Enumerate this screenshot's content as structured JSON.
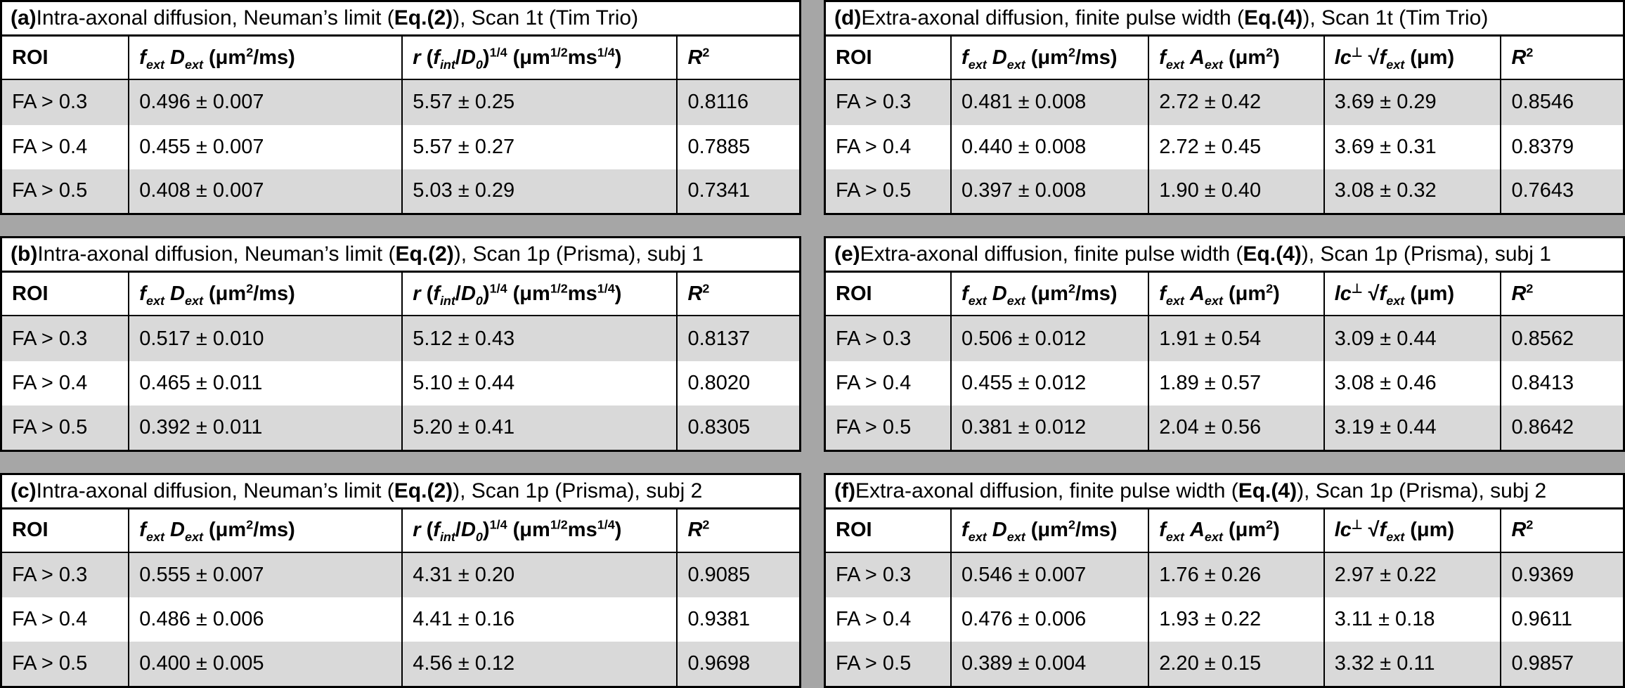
{
  "colors": {
    "row_shade": "#d9d9d9",
    "separator_band": "#a6a6a6",
    "border": "#000000",
    "background": "#ffffff"
  },
  "tables": {
    "a": {
      "title_html": "<b>(a)</b> Intra-axonal diffusion, Neuman’s limit (<b>Eq.(2)</b>), Scan 1t (Tim Trio)",
      "headers": [
        "ROI",
        "<i>f</i><sub><i>ext</i></sub> <i>D</i><sub><i>ext</i></sub> (μm<sup>2</sup>/ms)",
        "<i>r</i> (<i>f</i><sub><i>int</i></sub>/<i>D</i><sub><i>0</i></sub>)<sup>1/4</sup> (μm<sup>1/2</sup>ms<sup>1/4</sup>)",
        "<i>R</i><sup>2</sup>"
      ],
      "rows": [
        [
          "FA > 0.3",
          "0.496 ± 0.007",
          "5.57 ± 0.25",
          "0.8116"
        ],
        [
          "FA > 0.4",
          "0.455 ± 0.007",
          "5.57 ± 0.27",
          "0.7885"
        ],
        [
          "FA > 0.5",
          "0.408 ± 0.007",
          "5.03 ± 0.29",
          "0.7341"
        ]
      ]
    },
    "b": {
      "title_html": "<b>(b)</b> Intra-axonal diffusion, Neuman’s limit (<b>Eq.(2)</b>), Scan 1p (Prisma), subj 1",
      "headers": [
        "ROI",
        "<i>f</i><sub><i>ext</i></sub> <i>D</i><sub><i>ext</i></sub> (μm<sup>2</sup>/ms)",
        "<i>r</i> (<i>f</i><sub><i>int</i></sub>/<i>D</i><sub><i>0</i></sub>)<sup>1/4</sup> (μm<sup>1/2</sup>ms<sup>1/4</sup>)",
        "<i>R</i><sup>2</sup>"
      ],
      "rows": [
        [
          "FA > 0.3",
          "0.517 ± 0.010",
          "5.12 ± 0.43",
          "0.8137"
        ],
        [
          "FA > 0.4",
          "0.465 ± 0.011",
          "5.10 ± 0.44",
          "0.8020"
        ],
        [
          "FA > 0.5",
          "0.392 ± 0.011",
          "5.20 ± 0.41",
          "0.8305"
        ]
      ]
    },
    "c": {
      "title_html": "<b>(c)</b> Intra-axonal diffusion, Neuman’s limit (<b>Eq.(2)</b>), Scan 1p (Prisma), subj 2",
      "headers": [
        "ROI",
        "<i>f</i><sub><i>ext</i></sub> <i>D</i><sub><i>ext</i></sub> (μm<sup>2</sup>/ms)",
        "<i>r</i> (<i>f</i><sub><i>int</i></sub>/<i>D</i><sub><i>0</i></sub>)<sup>1/4</sup> (μm<sup>1/2</sup>ms<sup>1/4</sup>)",
        "<i>R</i><sup>2</sup>"
      ],
      "rows": [
        [
          "FA > 0.3",
          "0.555 ± 0.007",
          "4.31 ± 0.20",
          "0.9085"
        ],
        [
          "FA > 0.4",
          "0.486 ± 0.006",
          "4.41 ± 0.16",
          "0.9381"
        ],
        [
          "FA > 0.5",
          "0.400 ± 0.005",
          "4.56 ± 0.12",
          "0.9698"
        ]
      ]
    },
    "d": {
      "title_html": "<b>(d)</b> Extra-axonal diffusion, finite pulse width (<b>Eq.(4)</b>), Scan 1t (Tim Trio)",
      "headers": [
        "ROI",
        "<i>f</i><sub><i>ext</i></sub> <i>D</i><sub><i>ext</i></sub> (μm<sup>2</sup>/ms)",
        "<i>f</i><sub><i>ext</i></sub> <i>A</i><sub><i>ext</i></sub> (μm<sup>2</sup>)",
        "<i>lc</i><sup>⊥</sup> √<i>f</i><sub><i>ext</i></sub> (μm)",
        "<i>R</i><sup>2</sup>"
      ],
      "rows": [
        [
          "FA > 0.3",
          "0.481 ± 0.008",
          "2.72 ± 0.42",
          "3.69 ± 0.29",
          "0.8546"
        ],
        [
          "FA > 0.4",
          "0.440 ± 0.008",
          "2.72 ± 0.45",
          "3.69 ± 0.31",
          "0.8379"
        ],
        [
          "FA > 0.5",
          "0.397 ± 0.008",
          "1.90 ± 0.40",
          "3.08 ± 0.32",
          "0.7643"
        ]
      ]
    },
    "e": {
      "title_html": "<b>(e)</b> Extra-axonal diffusion, finite pulse width (<b>Eq.(4)</b>), Scan 1p (Prisma), subj 1",
      "headers": [
        "ROI",
        "<i>f</i><sub><i>ext</i></sub> <i>D</i><sub><i>ext</i></sub> (μm<sup>2</sup>/ms)",
        "<i>f</i><sub><i>ext</i></sub> <i>A</i><sub><i>ext</i></sub> (μm<sup>2</sup>)",
        "<i>lc</i><sup>⊥</sup> √<i>f</i><sub><i>ext</i></sub> (μm)",
        "<i>R</i><sup>2</sup>"
      ],
      "rows": [
        [
          "FA > 0.3",
          "0.506 ± 0.012",
          "1.91 ± 0.54",
          "3.09 ± 0.44",
          "0.8562"
        ],
        [
          "FA > 0.4",
          "0.455 ± 0.012",
          "1.89 ± 0.57",
          "3.08 ± 0.46",
          "0.8413"
        ],
        [
          "FA > 0.5",
          "0.381 ± 0.012",
          "2.04 ± 0.56",
          "3.19 ± 0.44",
          "0.8642"
        ]
      ]
    },
    "f": {
      "title_html": "<b>(f)</b> Extra-axonal diffusion, finite pulse width (<b>Eq.(4)</b>), Scan 1p (Prisma), subj 2",
      "headers": [
        "ROI",
        "<i>f</i><sub><i>ext</i></sub> <i>D</i><sub><i>ext</i></sub> (μm<sup>2</sup>/ms)",
        "<i>f</i><sub><i>ext</i></sub> <i>A</i><sub><i>ext</i></sub> (μm<sup>2</sup>)",
        "<i>lc</i><sup>⊥</sup> √<i>f</i><sub><i>ext</i></sub> (μm)",
        "<i>R</i><sup>2</sup>"
      ],
      "rows": [
        [
          "FA > 0.3",
          "0.546 ± 0.007",
          "1.76 ± 0.26",
          "2.97 ± 0.22",
          "0.9369"
        ],
        [
          "FA > 0.4",
          "0.476 ± 0.006",
          "1.93 ± 0.22",
          "3.11 ± 0.18",
          "0.9611"
        ],
        [
          "FA > 0.5",
          "0.389 ± 0.004",
          "2.20 ± 0.15",
          "3.32 ± 0.11",
          "0.9857"
        ]
      ]
    }
  }
}
